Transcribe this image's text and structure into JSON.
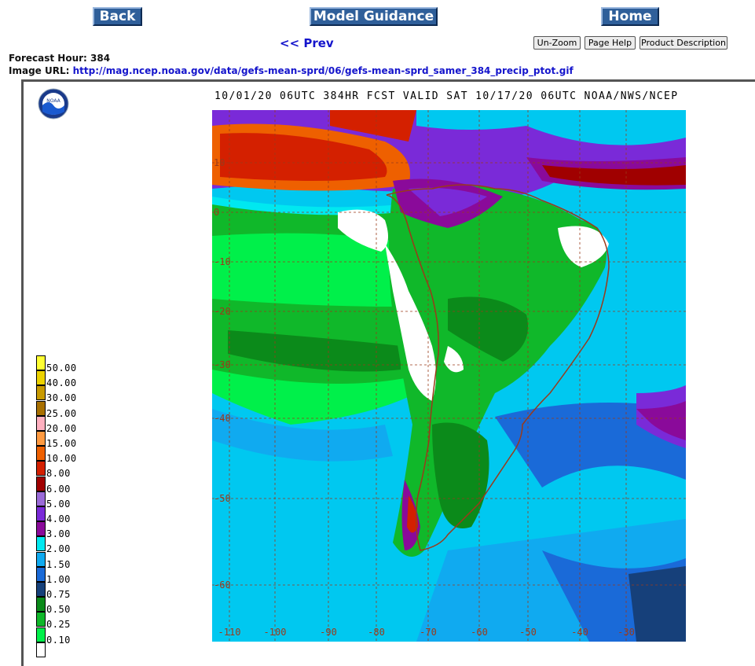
{
  "nav": {
    "back": "Back",
    "model_guidance": "Model Guidance",
    "home": "Home",
    "prev": "<< Prev"
  },
  "toolbar": {
    "unzoom": "Un-Zoom",
    "page_help": "Page Help",
    "product_description": "Product Description"
  },
  "info": {
    "forecast_hour_label": "Forecast Hour:",
    "forecast_hour": "384",
    "image_url_label": "Image URL:",
    "image_url": "http://mag.ncep.noaa.gov/data/gefs-mean-sprd/06/gefs-mean-sprd_samer_384_precip_ptot.gif"
  },
  "map": {
    "title": "10/01/20 06UTC 384HR FCST VALID SAT 10/17/20 06UTC NOAA/NWS/NCEP",
    "lat_labels": [
      "10",
      "0",
      "-10",
      "-20",
      "-30",
      "-40",
      "-50",
      "-60"
    ],
    "lon_labels": [
      "-110",
      "-100",
      "-90",
      "-80",
      "-70",
      "-60",
      "-50",
      "-40",
      "-30"
    ],
    "logo": "NOAA"
  },
  "legend": [
    {
      "label": "50.00",
      "color": "#ffff33"
    },
    {
      "label": "40.00",
      "color": "#ecd200"
    },
    {
      "label": "30.00",
      "color": "#c89a00"
    },
    {
      "label": "25.00",
      "color": "#a87000"
    },
    {
      "label": "20.00",
      "color": "#ffb0c0"
    },
    {
      "label": "15.00",
      "color": "#ff9a40"
    },
    {
      "label": "10.00",
      "color": "#ee6000"
    },
    {
      "label": "8.00",
      "color": "#d42000"
    },
    {
      "label": "6.00",
      "color": "#a00000"
    },
    {
      "label": "5.00",
      "color": "#9a6ad8"
    },
    {
      "label": "4.00",
      "color": "#7a2ad8"
    },
    {
      "label": "3.00",
      "color": "#8a0a9a"
    },
    {
      "label": "2.00",
      "color": "#00e8f0"
    },
    {
      "label": "1.50",
      "color": "#10aaf0"
    },
    {
      "label": "1.00",
      "color": "#1a6ad8"
    },
    {
      "label": "0.75",
      "color": "#16407a"
    },
    {
      "label": "0.50",
      "color": "#0b8a1a"
    },
    {
      "label": "0.25",
      "color": "#10b82a"
    },
    {
      "label": "0.10",
      "color": "#00f04a"
    },
    {
      "label": "",
      "color": "#ffffff"
    }
  ]
}
